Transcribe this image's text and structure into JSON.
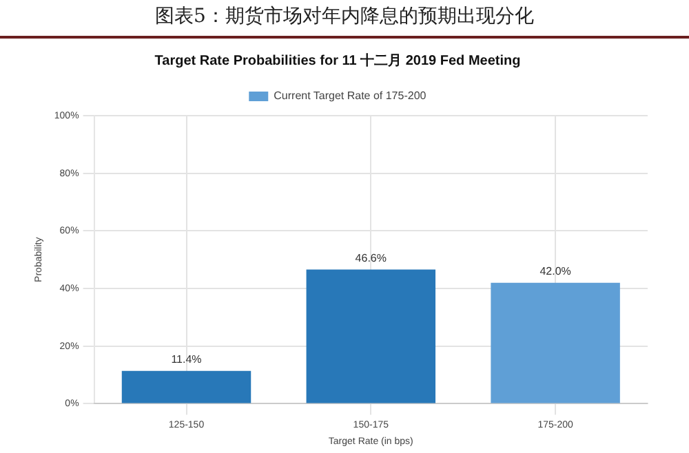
{
  "chart_data": {
    "type": "bar",
    "title": "图表5：期货市场对年内降息的预期出现分化",
    "subtitle": "Target Rate Probabilities for 11 十二月 2019 Fed Meeting",
    "xlabel": "Target Rate (in bps)",
    "ylabel": "Probability",
    "categories": [
      "125-150",
      "150-175",
      "175-200"
    ],
    "series": [
      {
        "color": "#2878b8",
        "values": [
          11.4,
          46.6,
          null
        ],
        "value_labels": [
          "11.4%",
          "46.6%",
          null
        ]
      },
      {
        "name": "Current Target Rate of 175-200",
        "color": "#5f9fd6",
        "values": [
          null,
          null,
          42.0
        ],
        "value_labels": [
          null,
          null,
          "42.0%"
        ]
      }
    ],
    "ylim": [
      0,
      100
    ],
    "yticks": [
      {
        "value": 0,
        "label": "0%"
      },
      {
        "value": 20,
        "label": "20%"
      },
      {
        "value": 40,
        "label": "40%"
      },
      {
        "value": 60,
        "label": "60%"
      },
      {
        "value": 80,
        "label": "80%"
      },
      {
        "value": 100,
        "label": "100%"
      }
    ],
    "grid": true,
    "legend": "top"
  }
}
